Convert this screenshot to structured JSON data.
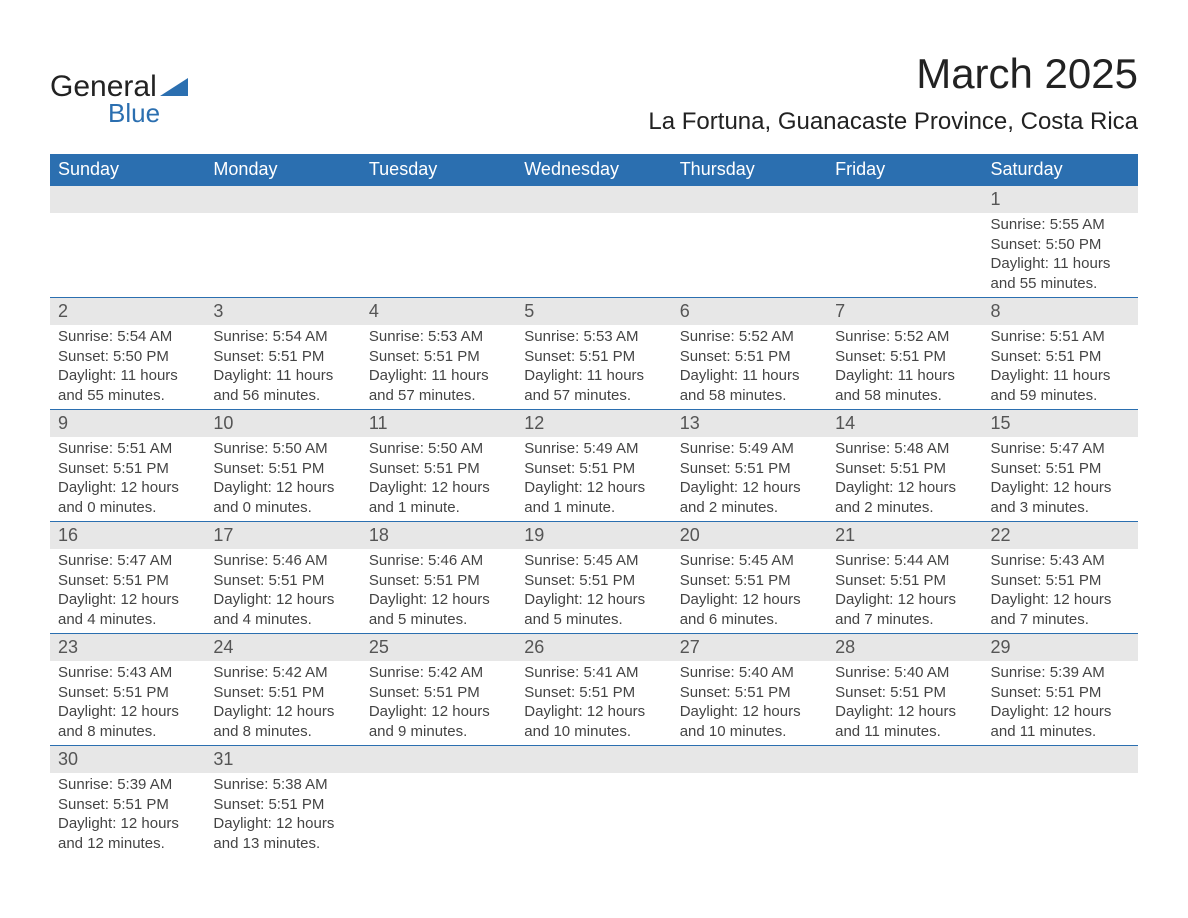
{
  "brand": {
    "general": "General",
    "blue": "Blue"
  },
  "title": "March 2025",
  "location": "La Fortuna, Guanacaste Province, Costa Rica",
  "colors": {
    "header_bg": "#2b6fb0",
    "header_text": "#ffffff",
    "daynum_bg": "#e7e7e7",
    "body_text": "#444444",
    "border": "#2b6fb0",
    "logo_blue": "#2b6fb0"
  },
  "weekdays": [
    "Sunday",
    "Monday",
    "Tuesday",
    "Wednesday",
    "Thursday",
    "Friday",
    "Saturday"
  ],
  "weeks": [
    [
      null,
      null,
      null,
      null,
      null,
      null,
      {
        "n": "1",
        "sunrise": "Sunrise: 5:55 AM",
        "sunset": "Sunset: 5:50 PM",
        "day1": "Daylight: 11 hours",
        "day2": "and 55 minutes."
      }
    ],
    [
      {
        "n": "2",
        "sunrise": "Sunrise: 5:54 AM",
        "sunset": "Sunset: 5:50 PM",
        "day1": "Daylight: 11 hours",
        "day2": "and 55 minutes."
      },
      {
        "n": "3",
        "sunrise": "Sunrise: 5:54 AM",
        "sunset": "Sunset: 5:51 PM",
        "day1": "Daylight: 11 hours",
        "day2": "and 56 minutes."
      },
      {
        "n": "4",
        "sunrise": "Sunrise: 5:53 AM",
        "sunset": "Sunset: 5:51 PM",
        "day1": "Daylight: 11 hours",
        "day2": "and 57 minutes."
      },
      {
        "n": "5",
        "sunrise": "Sunrise: 5:53 AM",
        "sunset": "Sunset: 5:51 PM",
        "day1": "Daylight: 11 hours",
        "day2": "and 57 minutes."
      },
      {
        "n": "6",
        "sunrise": "Sunrise: 5:52 AM",
        "sunset": "Sunset: 5:51 PM",
        "day1": "Daylight: 11 hours",
        "day2": "and 58 minutes."
      },
      {
        "n": "7",
        "sunrise": "Sunrise: 5:52 AM",
        "sunset": "Sunset: 5:51 PM",
        "day1": "Daylight: 11 hours",
        "day2": "and 58 minutes."
      },
      {
        "n": "8",
        "sunrise": "Sunrise: 5:51 AM",
        "sunset": "Sunset: 5:51 PM",
        "day1": "Daylight: 11 hours",
        "day2": "and 59 minutes."
      }
    ],
    [
      {
        "n": "9",
        "sunrise": "Sunrise: 5:51 AM",
        "sunset": "Sunset: 5:51 PM",
        "day1": "Daylight: 12 hours",
        "day2": "and 0 minutes."
      },
      {
        "n": "10",
        "sunrise": "Sunrise: 5:50 AM",
        "sunset": "Sunset: 5:51 PM",
        "day1": "Daylight: 12 hours",
        "day2": "and 0 minutes."
      },
      {
        "n": "11",
        "sunrise": "Sunrise: 5:50 AM",
        "sunset": "Sunset: 5:51 PM",
        "day1": "Daylight: 12 hours",
        "day2": "and 1 minute."
      },
      {
        "n": "12",
        "sunrise": "Sunrise: 5:49 AM",
        "sunset": "Sunset: 5:51 PM",
        "day1": "Daylight: 12 hours",
        "day2": "and 1 minute."
      },
      {
        "n": "13",
        "sunrise": "Sunrise: 5:49 AM",
        "sunset": "Sunset: 5:51 PM",
        "day1": "Daylight: 12 hours",
        "day2": "and 2 minutes."
      },
      {
        "n": "14",
        "sunrise": "Sunrise: 5:48 AM",
        "sunset": "Sunset: 5:51 PM",
        "day1": "Daylight: 12 hours",
        "day2": "and 2 minutes."
      },
      {
        "n": "15",
        "sunrise": "Sunrise: 5:47 AM",
        "sunset": "Sunset: 5:51 PM",
        "day1": "Daylight: 12 hours",
        "day2": "and 3 minutes."
      }
    ],
    [
      {
        "n": "16",
        "sunrise": "Sunrise: 5:47 AM",
        "sunset": "Sunset: 5:51 PM",
        "day1": "Daylight: 12 hours",
        "day2": "and 4 minutes."
      },
      {
        "n": "17",
        "sunrise": "Sunrise: 5:46 AM",
        "sunset": "Sunset: 5:51 PM",
        "day1": "Daylight: 12 hours",
        "day2": "and 4 minutes."
      },
      {
        "n": "18",
        "sunrise": "Sunrise: 5:46 AM",
        "sunset": "Sunset: 5:51 PM",
        "day1": "Daylight: 12 hours",
        "day2": "and 5 minutes."
      },
      {
        "n": "19",
        "sunrise": "Sunrise: 5:45 AM",
        "sunset": "Sunset: 5:51 PM",
        "day1": "Daylight: 12 hours",
        "day2": "and 5 minutes."
      },
      {
        "n": "20",
        "sunrise": "Sunrise: 5:45 AM",
        "sunset": "Sunset: 5:51 PM",
        "day1": "Daylight: 12 hours",
        "day2": "and 6 minutes."
      },
      {
        "n": "21",
        "sunrise": "Sunrise: 5:44 AM",
        "sunset": "Sunset: 5:51 PM",
        "day1": "Daylight: 12 hours",
        "day2": "and 7 minutes."
      },
      {
        "n": "22",
        "sunrise": "Sunrise: 5:43 AM",
        "sunset": "Sunset: 5:51 PM",
        "day1": "Daylight: 12 hours",
        "day2": "and 7 minutes."
      }
    ],
    [
      {
        "n": "23",
        "sunrise": "Sunrise: 5:43 AM",
        "sunset": "Sunset: 5:51 PM",
        "day1": "Daylight: 12 hours",
        "day2": "and 8 minutes."
      },
      {
        "n": "24",
        "sunrise": "Sunrise: 5:42 AM",
        "sunset": "Sunset: 5:51 PM",
        "day1": "Daylight: 12 hours",
        "day2": "and 8 minutes."
      },
      {
        "n": "25",
        "sunrise": "Sunrise: 5:42 AM",
        "sunset": "Sunset: 5:51 PM",
        "day1": "Daylight: 12 hours",
        "day2": "and 9 minutes."
      },
      {
        "n": "26",
        "sunrise": "Sunrise: 5:41 AM",
        "sunset": "Sunset: 5:51 PM",
        "day1": "Daylight: 12 hours",
        "day2": "and 10 minutes."
      },
      {
        "n": "27",
        "sunrise": "Sunrise: 5:40 AM",
        "sunset": "Sunset: 5:51 PM",
        "day1": "Daylight: 12 hours",
        "day2": "and 10 minutes."
      },
      {
        "n": "28",
        "sunrise": "Sunrise: 5:40 AM",
        "sunset": "Sunset: 5:51 PM",
        "day1": "Daylight: 12 hours",
        "day2": "and 11 minutes."
      },
      {
        "n": "29",
        "sunrise": "Sunrise: 5:39 AM",
        "sunset": "Sunset: 5:51 PM",
        "day1": "Daylight: 12 hours",
        "day2": "and 11 minutes."
      }
    ],
    [
      {
        "n": "30",
        "sunrise": "Sunrise: 5:39 AM",
        "sunset": "Sunset: 5:51 PM",
        "day1": "Daylight: 12 hours",
        "day2": "and 12 minutes."
      },
      {
        "n": "31",
        "sunrise": "Sunrise: 5:38 AM",
        "sunset": "Sunset: 5:51 PM",
        "day1": "Daylight: 12 hours",
        "day2": "and 13 minutes."
      },
      null,
      null,
      null,
      null,
      null
    ]
  ]
}
